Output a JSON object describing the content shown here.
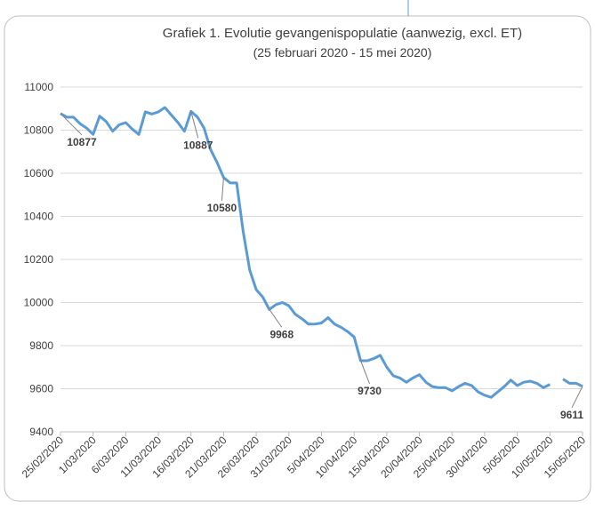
{
  "chart_data": {
    "type": "line",
    "title": "Grafiek 1. Evolutie gevangenispopulatie (aanwezig, excl. ET)",
    "subtitle": "(25 februari 2020 - 15 mei 2020)",
    "categories": [
      "25/02/2020",
      null,
      null,
      null,
      null,
      "1/03/2020",
      null,
      null,
      null,
      null,
      "6/03/2020",
      null,
      null,
      null,
      null,
      "11/03/2020",
      null,
      null,
      null,
      null,
      "16/03/2020",
      null,
      null,
      null,
      null,
      "21/03/2020",
      null,
      null,
      null,
      null,
      "26/03/2020",
      null,
      null,
      null,
      null,
      "31/03/2020",
      null,
      null,
      null,
      null,
      "5/04/2020",
      null,
      null,
      null,
      null,
      "10/04/2020",
      null,
      null,
      null,
      null,
      "15/04/2020",
      null,
      null,
      null,
      null,
      "20/04/2020",
      null,
      null,
      null,
      null,
      "25/04/2020",
      null,
      null,
      null,
      null,
      "30/04/2020",
      null,
      null,
      null,
      null,
      "5/05/2020",
      null,
      null,
      null,
      null,
      "10/05/2020",
      null,
      null,
      null,
      null,
      "15/05/2020"
    ],
    "series": [
      {
        "name": "Aanwezig",
        "color": "#5b9bd5",
        "values": [
          10877,
          10860,
          10860,
          10830,
          10810,
          10780,
          10865,
          10840,
          10795,
          10825,
          10835,
          10805,
          10780,
          10885,
          10875,
          10885,
          10905,
          10870,
          10835,
          10795,
          10887,
          10860,
          10810,
          10710,
          10650,
          10580,
          10555,
          10555,
          10330,
          10150,
          10060,
          10025,
          9968,
          9990,
          10000,
          9985,
          9945,
          9925,
          9900,
          9900,
          9905,
          9930,
          9900,
          9885,
          9865,
          9840,
          9730,
          9730,
          9740,
          9755,
          9700,
          9660,
          9650,
          9630,
          9650,
          9665,
          9630,
          9610,
          9605,
          9605,
          9590,
          9610,
          9625,
          9615,
          9585,
          9570,
          9560,
          9585,
          9610,
          9640,
          9615,
          9630,
          9635,
          9625,
          9605,
          9620,
          null,
          9645,
          9625,
          9625,
          9611
        ]
      }
    ],
    "labeled_points": [
      0,
      20,
      25,
      32,
      46,
      80
    ],
    "ylim": [
      9400,
      11000
    ],
    "yticks": [
      9400,
      9600,
      9800,
      10000,
      10200,
      10400,
      10600,
      10800,
      11000
    ],
    "grid": true
  }
}
